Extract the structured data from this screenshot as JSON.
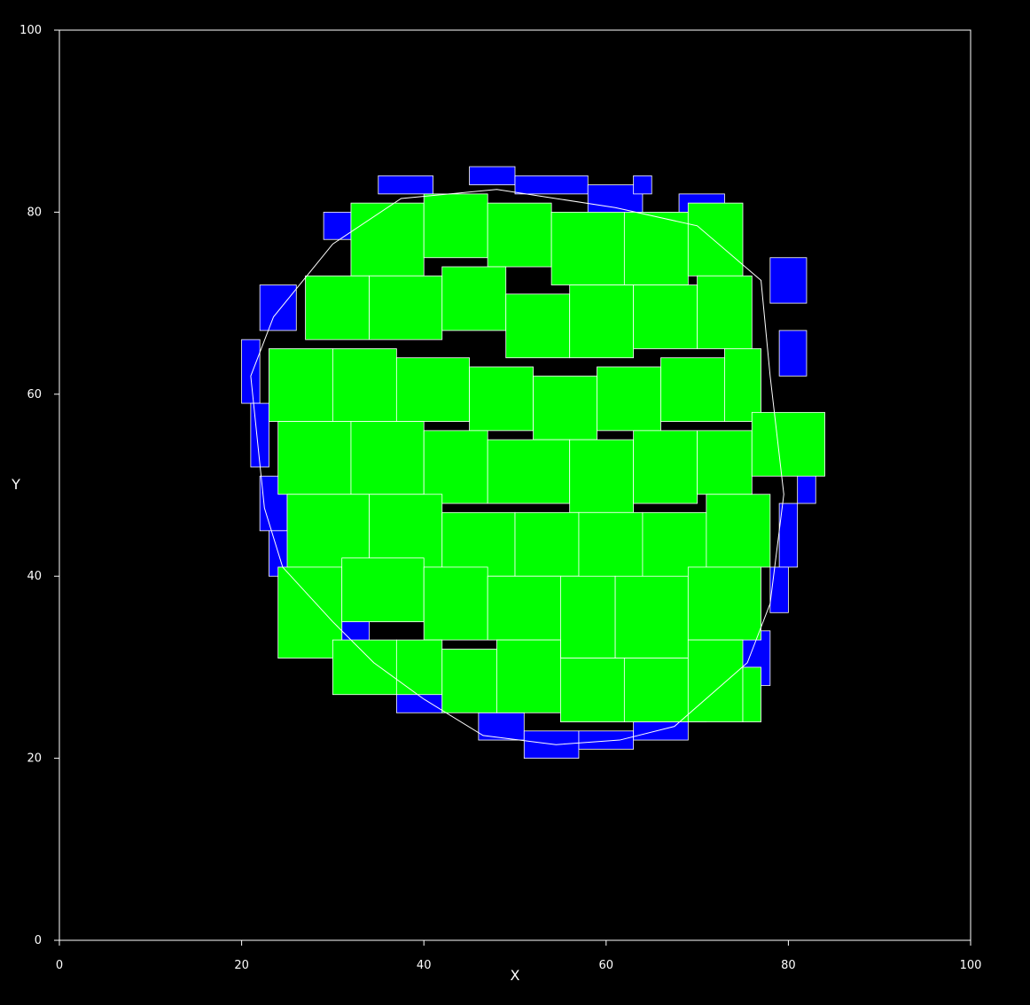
{
  "chart_data": {
    "type": "map",
    "title": "",
    "xlabel": "X",
    "ylabel": "Y",
    "xlim": [
      0,
      100
    ],
    "ylim": [
      0,
      100
    ],
    "xticks": [
      0,
      20,
      40,
      60,
      80,
      100
    ],
    "yticks": [
      0,
      20,
      40,
      60,
      80,
      100
    ],
    "background_color": "#000000",
    "axis_color": "#ffffff",
    "fill_colors": {
      "interior": "#00ff00",
      "boundary": "#0000ff"
    },
    "boundary_polygon": [
      [
        21.0,
        62.0
      ],
      [
        23.5,
        68.5
      ],
      [
        30.0,
        76.5
      ],
      [
        37.5,
        81.5
      ],
      [
        48.0,
        82.5
      ],
      [
        61.0,
        80.5
      ],
      [
        70.0,
        78.5
      ],
      [
        77.0,
        72.5
      ],
      [
        78.0,
        62.0
      ],
      [
        79.5,
        49.0
      ],
      [
        78.0,
        37.0
      ],
      [
        75.5,
        30.5
      ],
      [
        67.5,
        23.5
      ],
      [
        61.5,
        22.0
      ],
      [
        54.5,
        21.5
      ],
      [
        46.5,
        22.5
      ],
      [
        40.0,
        26.5
      ],
      [
        34.5,
        30.5
      ],
      [
        30.0,
        35.0
      ],
      [
        24.5,
        41.0
      ],
      [
        22.5,
        47.5
      ],
      [
        21.0,
        62.0
      ]
    ],
    "interior_cells": [
      [
        32,
        73,
        40,
        81
      ],
      [
        40,
        75,
        47,
        82
      ],
      [
        47,
        74,
        54,
        81
      ],
      [
        54,
        72,
        62,
        80
      ],
      [
        62,
        72,
        69,
        80
      ],
      [
        69,
        73,
        75,
        81
      ],
      [
        27,
        66,
        34,
        73
      ],
      [
        34,
        66,
        42,
        73
      ],
      [
        42,
        67,
        49,
        74
      ],
      [
        49,
        64,
        56,
        71
      ],
      [
        56,
        64,
        63,
        72
      ],
      [
        63,
        65,
        70,
        72
      ],
      [
        70,
        65,
        76,
        73
      ],
      [
        23,
        57,
        30,
        65
      ],
      [
        30,
        57,
        37,
        65
      ],
      [
        37,
        57,
        45,
        64
      ],
      [
        45,
        56,
        52,
        63
      ],
      [
        52,
        55,
        59,
        62
      ],
      [
        59,
        56,
        66,
        63
      ],
      [
        66,
        57,
        73,
        64
      ],
      [
        73,
        57,
        77,
        65
      ],
      [
        24,
        49,
        32,
        57
      ],
      [
        32,
        49,
        40,
        57
      ],
      [
        40,
        48,
        47,
        56
      ],
      [
        47,
        48,
        56,
        55
      ],
      [
        56,
        47,
        63,
        55
      ],
      [
        63,
        48,
        70,
        56
      ],
      [
        70,
        49,
        76,
        56
      ],
      [
        76,
        51,
        84,
        58
      ],
      [
        25,
        41,
        34,
        49
      ],
      [
        34,
        41,
        42,
        49
      ],
      [
        42,
        40,
        50,
        47
      ],
      [
        50,
        40,
        57,
        47
      ],
      [
        57,
        39,
        64,
        47
      ],
      [
        64,
        39,
        71,
        47
      ],
      [
        71,
        41,
        78,
        49
      ],
      [
        24,
        31,
        31,
        41
      ],
      [
        31,
        35,
        40,
        42
      ],
      [
        40,
        33,
        47,
        41
      ],
      [
        47,
        33,
        55,
        40
      ],
      [
        55,
        31,
        61,
        40
      ],
      [
        61,
        31,
        69,
        40
      ],
      [
        69,
        33,
        77,
        41
      ],
      [
        30,
        27,
        37,
        33
      ],
      [
        37,
        27,
        42,
        33
      ],
      [
        42,
        25,
        48,
        32
      ],
      [
        48,
        25,
        55,
        33
      ],
      [
        55,
        24,
        62,
        31
      ],
      [
        62,
        24,
        69,
        31
      ],
      [
        69,
        24,
        75,
        33
      ],
      [
        75,
        24,
        77,
        30
      ]
    ],
    "boundary_cells": [
      [
        35,
        82,
        41,
        84
      ],
      [
        45,
        83,
        50,
        85
      ],
      [
        50,
        82,
        58,
        84
      ],
      [
        58,
        80,
        64,
        83
      ],
      [
        63,
        82,
        65,
        84
      ],
      [
        29,
        77,
        32,
        80
      ],
      [
        68,
        78,
        73,
        82
      ],
      [
        22,
        67,
        26,
        72
      ],
      [
        78,
        70,
        82,
        75
      ],
      [
        20,
        59,
        22,
        66
      ],
      [
        79,
        62,
        82,
        67
      ],
      [
        21,
        52,
        23,
        59
      ],
      [
        81,
        48,
        83,
        52
      ],
      [
        22,
        45,
        25,
        51
      ],
      [
        79,
        41,
        81,
        48
      ],
      [
        23,
        40,
        26,
        45
      ],
      [
        78,
        36,
        80,
        41
      ],
      [
        31,
        32,
        34,
        36
      ],
      [
        74,
        28,
        78,
        34
      ],
      [
        37,
        25,
        42,
        29
      ],
      [
        46,
        22,
        51,
        25
      ],
      [
        51,
        20,
        57,
        23
      ],
      [
        57,
        21,
        63,
        23
      ],
      [
        63,
        22,
        69,
        24
      ],
      [
        66,
        24,
        71,
        27
      ]
    ]
  }
}
